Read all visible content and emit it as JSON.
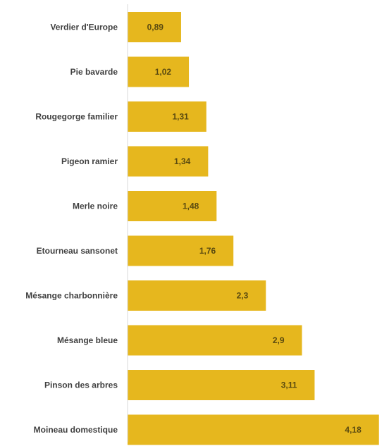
{
  "chart_data": {
    "type": "bar",
    "orientation": "horizontal",
    "categories": [
      "Verdier d'Europe",
      "Pie bavarde",
      "Rougegorge familier",
      "Pigeon ramier",
      "Merle noire",
      "Etourneau sansonet",
      "Mésange charbonnière",
      "Mésange bleue",
      "Pinson des arbres",
      "Moineau domestique"
    ],
    "values": [
      0.89,
      1.02,
      1.31,
      1.34,
      1.48,
      1.76,
      2.3,
      2.9,
      3.11,
      4.18
    ],
    "value_labels": [
      "0,89",
      "1,02",
      "1,31",
      "1,34",
      "1,48",
      "1,76",
      "2,3",
      "2,9",
      "3,11",
      "4,18"
    ],
    "title": "",
    "xlabel": "",
    "ylabel": "",
    "xlim": [
      0,
      4.3
    ],
    "grid": false,
    "legend": "none",
    "colors": {
      "bar": "#e6b71e",
      "axis": "#d9d9d9",
      "category_text": "#404040",
      "value_text": "#5a4a10"
    }
  }
}
